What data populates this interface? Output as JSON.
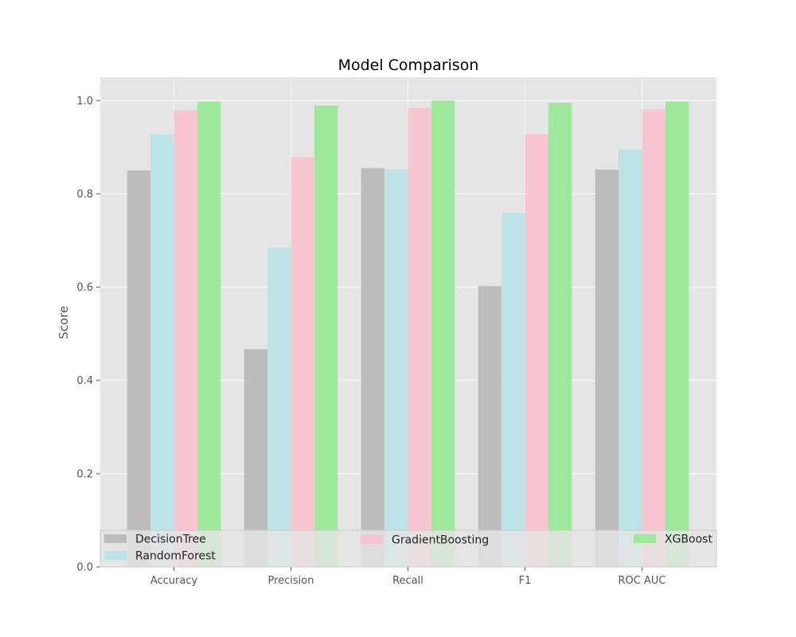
{
  "chart_data": {
    "type": "bar",
    "title": "Model Comparison",
    "xlabel": "",
    "ylabel": "Score",
    "ylim": [
      0,
      1.05
    ],
    "yticks": [
      "0.0",
      "0.2",
      "0.4",
      "0.6",
      "0.8",
      "1.0"
    ],
    "categories": [
      "Accuracy",
      "Precision",
      "Recall",
      "F1",
      "ROC AUC"
    ],
    "series": [
      {
        "name": "DecisionTree",
        "color": "#bcbcbc",
        "values": [
          0.85,
          0.467,
          0.855,
          0.602,
          0.852
        ]
      },
      {
        "name": "RandomForest",
        "color": "#bde3e8",
        "values": [
          0.928,
          0.685,
          0.852,
          0.759,
          0.895
        ]
      },
      {
        "name": "GradientBoosting",
        "color": "#f8c6d0",
        "values": [
          0.979,
          0.879,
          0.985,
          0.928,
          0.981
        ]
      },
      {
        "name": "XGBoost",
        "color": "#9ee89b",
        "values": [
          0.998,
          0.989,
          1.0,
          0.995,
          0.998
        ]
      }
    ],
    "grid": true,
    "legend_position": "lower"
  }
}
